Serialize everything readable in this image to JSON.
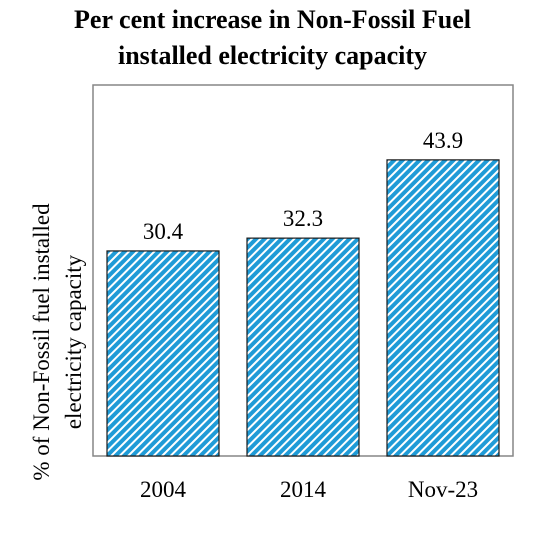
{
  "chart_data": {
    "type": "bar",
    "title": "Per cent increase in Non-Fossil Fuel installed electricity capacity",
    "title_lines": [
      "Per cent increase in Non-Fossil Fuel",
      "installed electricity capacity"
    ],
    "ylabel": "% of  Non-Fossil fuel installed electricity capacity",
    "ylabel_lines": [
      "% of  Non-Fossil fuel installed",
      "electricity capacity"
    ],
    "xlabel": "",
    "categories": [
      "2004",
      "2014",
      "Nov-23"
    ],
    "values": [
      30.4,
      32.3,
      43.9
    ],
    "data_labels": [
      "30.4",
      "32.3",
      "43.9"
    ],
    "ylim": [
      0,
      55
    ],
    "grid": false,
    "legend": "none",
    "bar_color": "#1f9bd7",
    "bar_pattern": "diagonal-stripes"
  }
}
